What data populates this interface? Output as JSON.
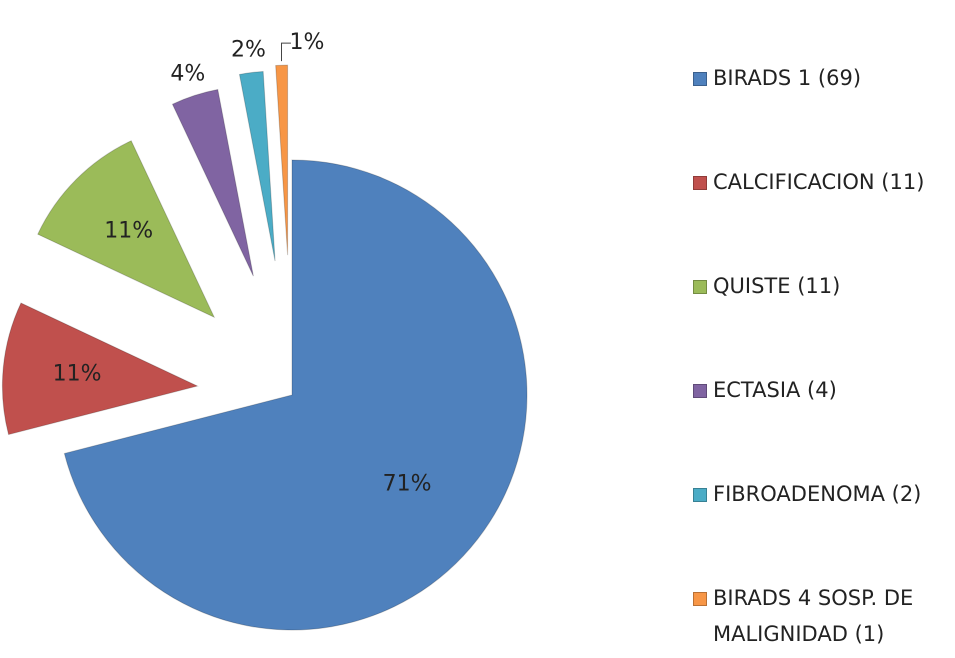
{
  "chart_data": {
    "type": "pie",
    "categories": [
      "BIRADS 1 (69)",
      "CALCIFICACION (11)",
      "QUISTE (11)",
      "ECTASIA (4)",
      "FIBROADENOMA (2)",
      "BIRADS 4 SOSP. DE MALIGNIDAD (1)"
    ],
    "values": [
      71,
      11,
      11,
      4,
      2,
      1
    ],
    "value_labels": [
      "71%",
      "11%",
      "11%",
      "4%",
      "2%",
      "1%"
    ],
    "colors": [
      "#4f81bd",
      "#c0504d",
      "#9bbb59",
      "#8064a2",
      "#4bacc6",
      "#f79646"
    ]
  }
}
